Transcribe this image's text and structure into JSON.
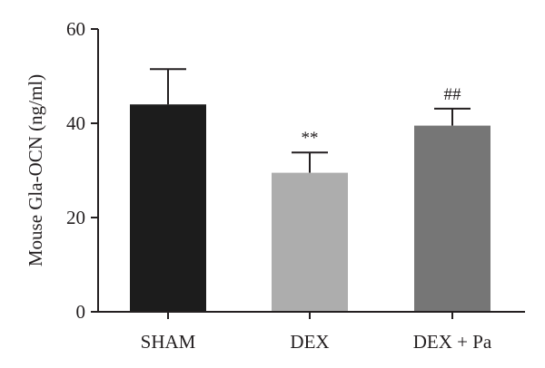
{
  "chart_data": {
    "type": "bar",
    "categories": [
      "SHAM",
      "DEX",
      "DEX + Pa"
    ],
    "values": [
      44,
      29.5,
      39.5
    ],
    "errors": [
      7.5,
      4.3,
      3.6
    ],
    "annotations": [
      "",
      "**",
      "##"
    ],
    "bar_colors": [
      "#1c1c1c",
      "#adadad",
      "#767676"
    ],
    "title": "",
    "xlabel": "",
    "ylabel": "Mouse Gla-OCN (ng/ml)",
    "ylim": [
      0,
      60
    ],
    "yticks": [
      0,
      20,
      40,
      60
    ],
    "grid": false,
    "legend": "none"
  }
}
